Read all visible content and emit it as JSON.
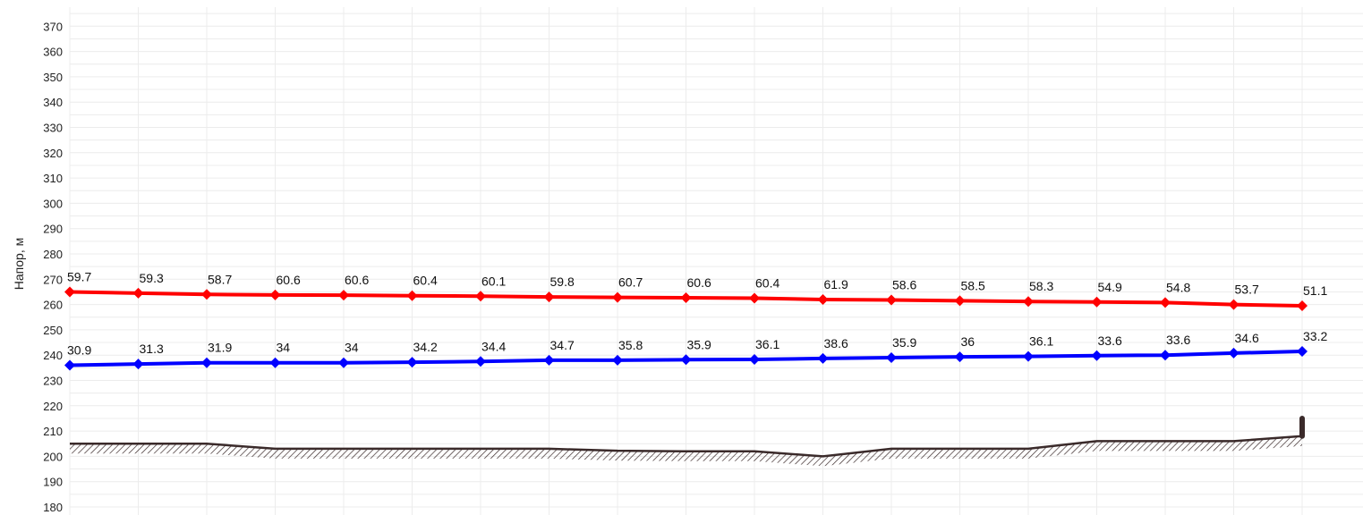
{
  "chart_data": {
    "type": "line",
    "ylabel": "Напор, м",
    "xlabel": "",
    "title": "",
    "ylim": [
      180,
      370
    ],
    "y_ticks": [
      180,
      190,
      200,
      210,
      220,
      230,
      240,
      250,
      260,
      270,
      280,
      290,
      300,
      310,
      320,
      330,
      340,
      350,
      360,
      370
    ],
    "grid": true,
    "legend": "none",
    "x": [
      1,
      2,
      3,
      4,
      5,
      6,
      7,
      8,
      9,
      10,
      11,
      12,
      13,
      14,
      15,
      16,
      17,
      18,
      19
    ],
    "series": [
      {
        "color": "#ff0000",
        "values": [
          265,
          264.5,
          264,
          263.8,
          263.7,
          263.5,
          263.3,
          263,
          262.8,
          262.7,
          262.5,
          262,
          261.8,
          261.5,
          261.2,
          261,
          260.8,
          260,
          259.5
        ],
        "labels": [
          "59.7",
          "59.3",
          "58.7",
          "60.6",
          "60.6",
          "60.4",
          "60.1",
          "59.8",
          "60.7",
          "60.6",
          "60.4",
          "61.9",
          "58.6",
          "58.5",
          "58.3",
          "54.9",
          "54.8",
          "53.7",
          "51.1"
        ]
      },
      {
        "color": "#0000ff",
        "values": [
          236,
          236.5,
          237,
          237,
          237,
          237.2,
          237.5,
          238,
          238,
          238.2,
          238.3,
          238.7,
          239,
          239.3,
          239.5,
          239.8,
          240,
          240.8,
          241.5
        ],
        "labels": [
          "30.9",
          "31.3",
          "31.9",
          "34",
          "34",
          "34.2",
          "34.4",
          "34.7",
          "35.8",
          "35.9",
          "36.1",
          "38.6",
          "35.9",
          "36",
          "36.1",
          "33.6",
          "33.6",
          "34.6",
          "33.2"
        ]
      },
      {
        "color": "#3a2a2a",
        "values": [
          205,
          205,
          205,
          203,
          203,
          203,
          203,
          203,
          202.2,
          202,
          202,
          200,
          203,
          203,
          203,
          206,
          206,
          206,
          208
        ],
        "marker_end": [
          208,
          215
        ]
      }
    ]
  }
}
